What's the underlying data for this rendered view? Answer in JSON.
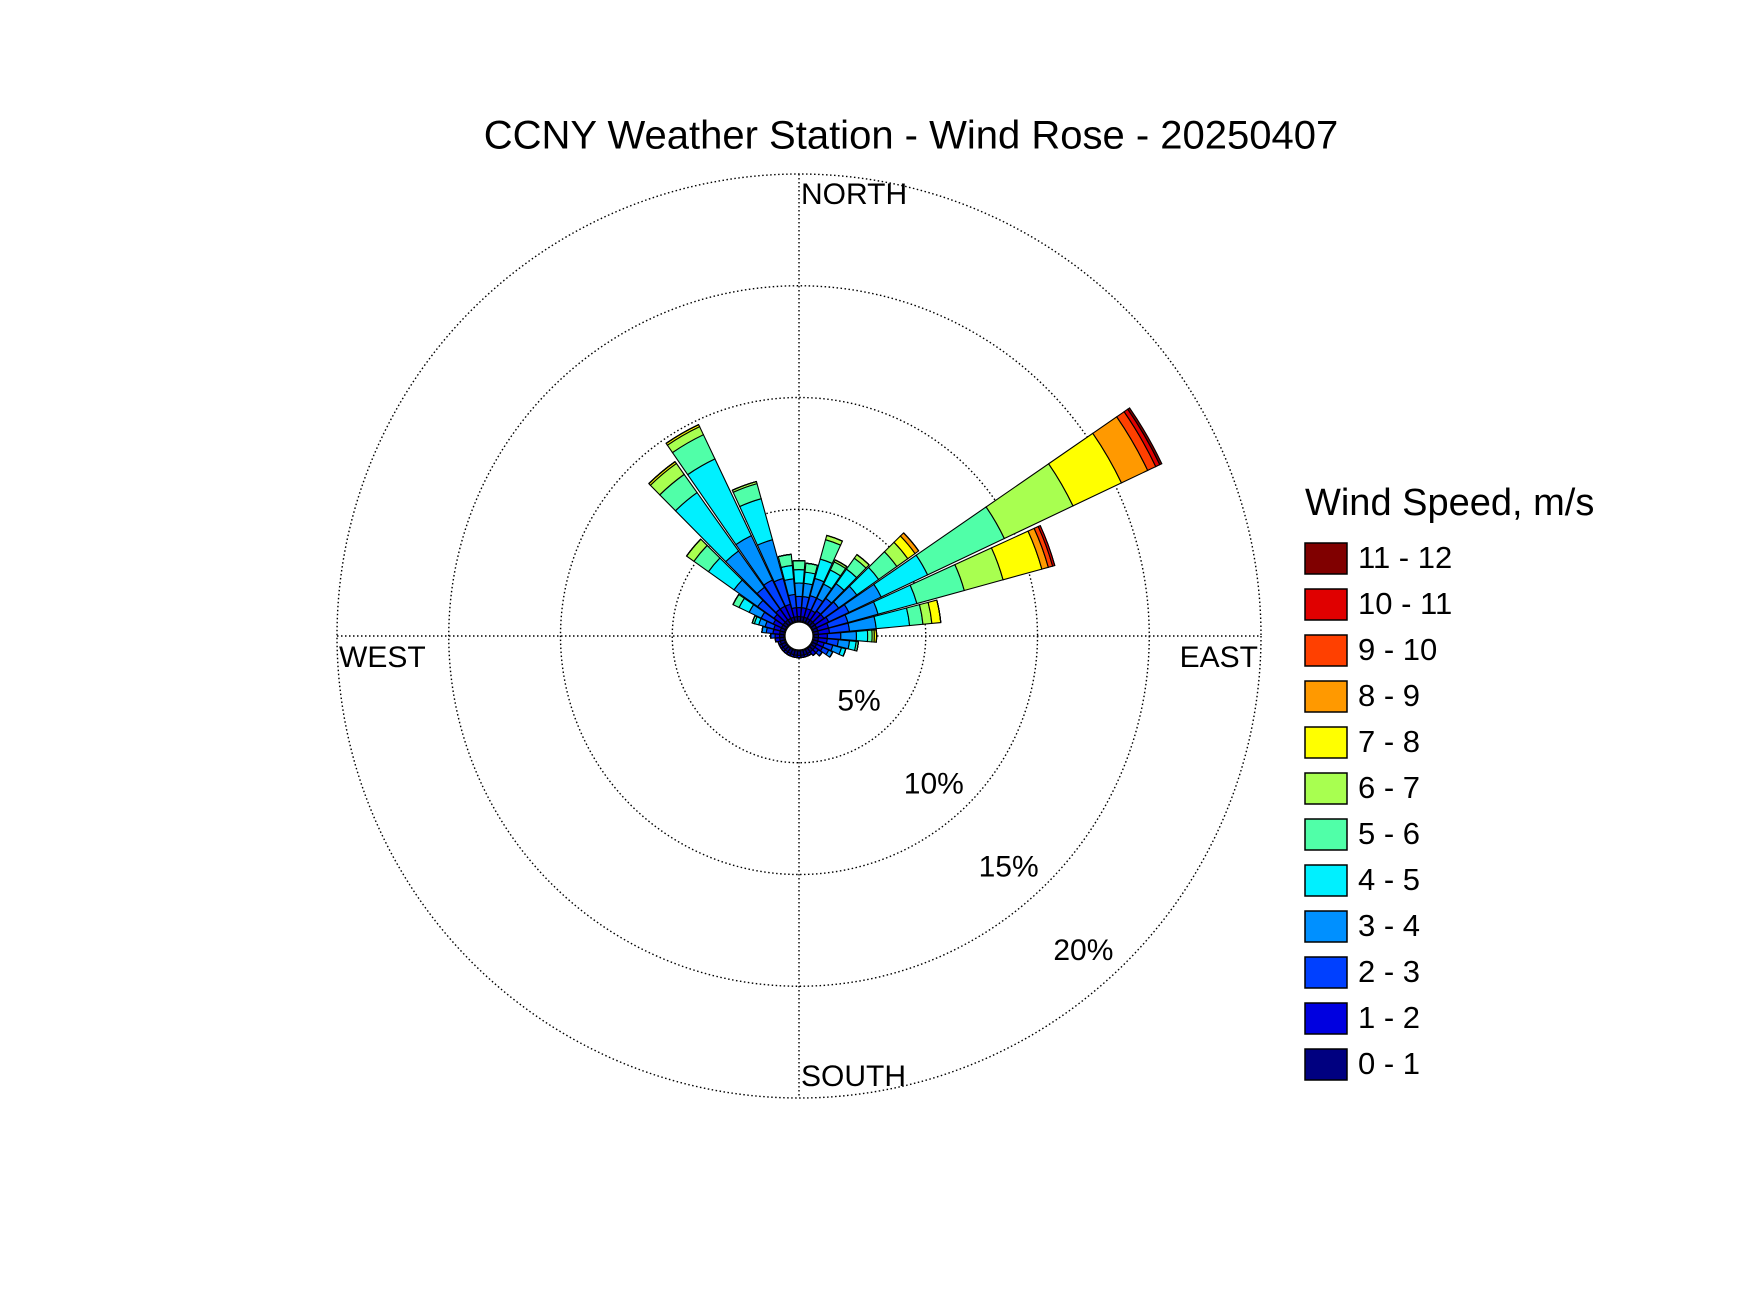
{
  "chart_data": {
    "type": "windrose",
    "title": "CCNY Weather Station - Wind Rose - 20250407",
    "direction_labels": [
      "NORTH",
      "EAST",
      "SOUTH",
      "WEST"
    ],
    "legend_title": "Wind Speed, m/s",
    "directions": [
      0,
      10,
      20,
      30,
      40,
      50,
      60,
      70,
      80,
      90,
      100,
      110,
      120,
      130,
      140,
      150,
      160,
      170,
      180,
      190,
      200,
      210,
      220,
      230,
      240,
      250,
      260,
      270,
      280,
      290,
      300,
      310,
      320,
      330,
      340,
      350
    ],
    "ylim": [
      0,
      20
    ],
    "yticks": [
      {
        "value": 5,
        "label": "5%"
      },
      {
        "value": 10,
        "label": "10%"
      },
      {
        "value": 15,
        "label": "15%"
      },
      {
        "value": 20,
        "label": "20%"
      }
    ],
    "grid": true,
    "series": [
      {
        "name": "0 - 1",
        "color": "#000080",
        "values": [
          0.2,
          0.2,
          0.2,
          0.2,
          0.2,
          0.2,
          0.2,
          0.2,
          0.2,
          0.2,
          0.2,
          0.2,
          0.2,
          0.2,
          0.2,
          0.2,
          0.2,
          0.2,
          0.2,
          0.2,
          0.2,
          0.2,
          0.2,
          0.2,
          0.2,
          0.2,
          0.2,
          0.2,
          0.2,
          0.2,
          0.2,
          0.2,
          0.2,
          0.2,
          0.2,
          0.2
        ]
      },
      {
        "name": "1 - 2",
        "color": "#0000e0",
        "values": [
          0.4,
          0.4,
          0.4,
          0.4,
          0.5,
          0.5,
          0.6,
          0.5,
          0.5,
          0.4,
          0.4,
          0.3,
          0.3,
          0.2,
          0.2,
          0.1,
          0.1,
          0.1,
          0.1,
          0.1,
          0.1,
          0.1,
          0.1,
          0.1,
          0.1,
          0.1,
          0.2,
          0.2,
          0.3,
          0.3,
          0.4,
          0.5,
          0.6,
          0.6,
          0.6,
          0.4
        ]
      },
      {
        "name": "2 - 3",
        "color": "#0040ff",
        "values": [
          0.5,
          0.5,
          0.6,
          0.6,
          0.7,
          0.8,
          1.0,
          0.9,
          0.9,
          0.6,
          0.5,
          0.4,
          0.3,
          0.2,
          0,
          0,
          0,
          0,
          0,
          0,
          0,
          0,
          0,
          0,
          0,
          0,
          0,
          0.2,
          0.3,
          0.4,
          0.6,
          0.9,
          1.2,
          1.3,
          1.2,
          0.6
        ]
      },
      {
        "name": "3 - 4",
        "color": "#0090ff",
        "values": [
          0.6,
          0.6,
          0.8,
          0.7,
          0.8,
          1.0,
          1.6,
          1.4,
          1.2,
          0.7,
          0.5,
          0.4,
          0.2,
          0,
          0,
          0,
          0,
          0,
          0,
          0,
          0,
          0,
          0,
          0,
          0,
          0,
          0,
          0,
          0.2,
          0.3,
          0.6,
          1.3,
          2.0,
          2.2,
          1.8,
          0.7
        ]
      },
      {
        "name": "4 - 5",
        "color": "#00f0ff",
        "values": [
          0.6,
          0.5,
          0.9,
          0.7,
          0.8,
          1.2,
          2.3,
          1.8,
          1.5,
          0.5,
          0.3,
          0.2,
          0,
          0,
          0,
          0,
          0,
          0,
          0,
          0,
          0,
          0,
          0,
          0,
          0,
          0,
          0,
          0,
          0,
          0.2,
          0.5,
          1.4,
          3.2,
          3.8,
          1.9,
          0.6
        ]
      },
      {
        "name": "5 - 6",
        "color": "#50ffa8",
        "values": [
          0.4,
          0.4,
          0.9,
          0.4,
          0.6,
          1.0,
          3.8,
          2.2,
          0.6,
          0.2,
          0.1,
          0,
          0,
          0,
          0,
          0,
          0,
          0,
          0,
          0,
          0,
          0,
          0,
          0,
          0,
          0,
          0,
          0,
          0,
          0.1,
          0.3,
          0.8,
          1.0,
          1.2,
          0.7,
          0.5
        ]
      },
      {
        "name": "6 - 7",
        "color": "#a8ff50",
        "values": [
          0,
          0,
          0.2,
          0.1,
          0.2,
          0.6,
          3.4,
          1.8,
          0.4,
          0.1,
          0,
          0,
          0,
          0,
          0,
          0,
          0,
          0,
          0,
          0,
          0,
          0,
          0,
          0,
          0,
          0,
          0,
          0,
          0,
          0,
          0,
          0.4,
          0.6,
          0.4,
          0.1,
          0
        ]
      },
      {
        "name": "7 - 8",
        "color": "#ffff00",
        "values": [
          0,
          0,
          0,
          0,
          0,
          0.4,
          2.4,
          1.8,
          0.4,
          0.1,
          0,
          0,
          0,
          0,
          0,
          0,
          0,
          0,
          0,
          0,
          0,
          0,
          0,
          0,
          0,
          0,
          0,
          0,
          0,
          0,
          0,
          0,
          0.1,
          0.1,
          0,
          0
        ]
      },
      {
        "name": "8 - 9",
        "color": "#ff9900",
        "values": [
          0,
          0,
          0,
          0,
          0,
          0.2,
          1.3,
          0.3,
          0,
          0,
          0,
          0,
          0,
          0,
          0,
          0,
          0,
          0,
          0,
          0,
          0,
          0,
          0,
          0,
          0,
          0,
          0,
          0,
          0,
          0,
          0,
          0,
          0,
          0,
          0,
          0
        ]
      },
      {
        "name": "9 - 10",
        "color": "#ff4000",
        "values": [
          0,
          0,
          0,
          0,
          0,
          0,
          0.4,
          0.2,
          0,
          0,
          0,
          0,
          0,
          0,
          0,
          0,
          0,
          0,
          0,
          0,
          0,
          0,
          0,
          0,
          0,
          0,
          0,
          0,
          0,
          0,
          0,
          0,
          0,
          0,
          0,
          0
        ]
      },
      {
        "name": "10 - 11",
        "color": "#e00000",
        "values": [
          0,
          0,
          0,
          0,
          0,
          0,
          0.2,
          0.1,
          0,
          0,
          0,
          0,
          0,
          0,
          0,
          0,
          0,
          0,
          0,
          0,
          0,
          0,
          0,
          0,
          0,
          0,
          0,
          0,
          0,
          0,
          0,
          0,
          0,
          0,
          0,
          0
        ]
      },
      {
        "name": "11 - 12",
        "color": "#800000",
        "values": [
          0,
          0,
          0,
          0,
          0,
          0,
          0.1,
          0,
          0,
          0,
          0,
          0,
          0,
          0,
          0,
          0,
          0,
          0,
          0,
          0,
          0,
          0,
          0,
          0,
          0,
          0,
          0,
          0,
          0,
          0,
          0,
          0,
          0,
          0,
          0,
          0
        ]
      }
    ]
  }
}
